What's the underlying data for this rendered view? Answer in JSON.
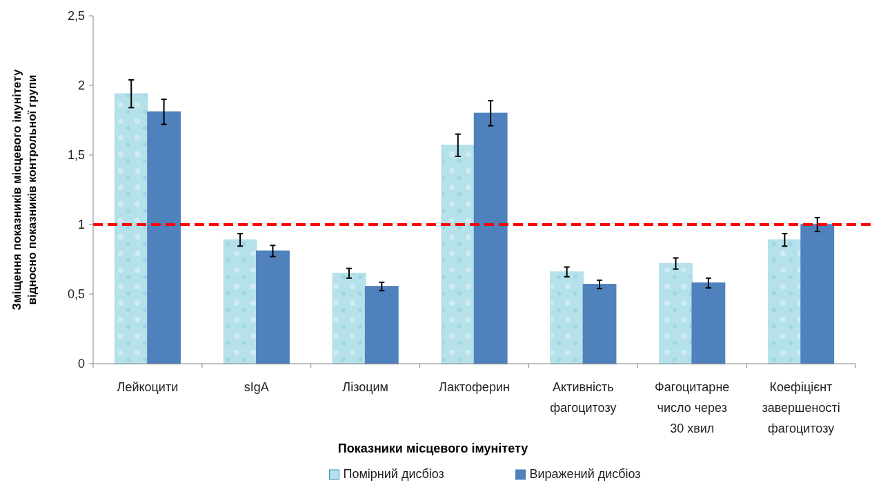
{
  "chart_data": {
    "type": "bar",
    "xlabel": "Показники місцевого імунітету",
    "ylabel": "Зміщення показників місцевого імунітету відносно показників контрольної групи",
    "categories": [
      "Лейкоцити",
      "sIgA",
      "Лізоцим",
      "Лактоферин",
      "Активність фагоцитозу",
      "Фагоцитарне число через 30 хвил",
      "Коефіцієнт завершеності фагоцитозу"
    ],
    "series": [
      {
        "name": "Помірний дисбіоз",
        "color": "#b5e1ea",
        "values": [
          1.94,
          0.89,
          0.65,
          1.57,
          0.66,
          0.72,
          0.89
        ],
        "errors": [
          0.1,
          0.045,
          0.035,
          0.08,
          0.035,
          0.04,
          0.045
        ]
      },
      {
        "name": "Виражений дисбіоз",
        "color": "#4f81bd",
        "values": [
          1.81,
          0.81,
          0.555,
          1.8,
          0.57,
          0.58,
          1.0
        ],
        "errors": [
          0.09,
          0.04,
          0.03,
          0.09,
          0.03,
          0.035,
          0.05
        ]
      }
    ],
    "ylim": [
      0,
      2.5
    ],
    "yticks": [
      0,
      {
        "value": 0.5,
        "label": "0,5"
      },
      1,
      {
        "value": 1.5,
        "label": "1,5"
      },
      2,
      {
        "value": 2.5,
        "label": "2,5"
      }
    ],
    "ref_lines": [
      {
        "axis": "y",
        "value": 1,
        "color": "#ff0000",
        "line_style": "dashed"
      }
    ],
    "grid": false,
    "legend": "bottom"
  }
}
